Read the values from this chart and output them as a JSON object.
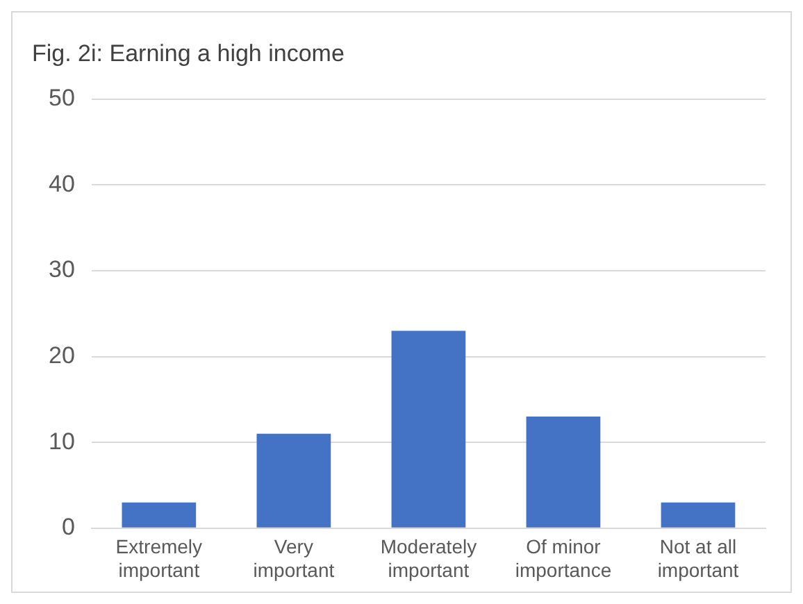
{
  "chart_data": {
    "type": "bar",
    "title": "Fig. 2i: Earning a high income",
    "categories": [
      "Extremely important",
      "Very important",
      "Moderately important",
      "Of minor importance",
      "Not at all important"
    ],
    "values": [
      3,
      11,
      23,
      13,
      3
    ],
    "color": "#4472c4",
    "ylim": [
      0,
      50
    ],
    "yticks": [
      0,
      10,
      20,
      30,
      40,
      50
    ],
    "grid": "y"
  }
}
